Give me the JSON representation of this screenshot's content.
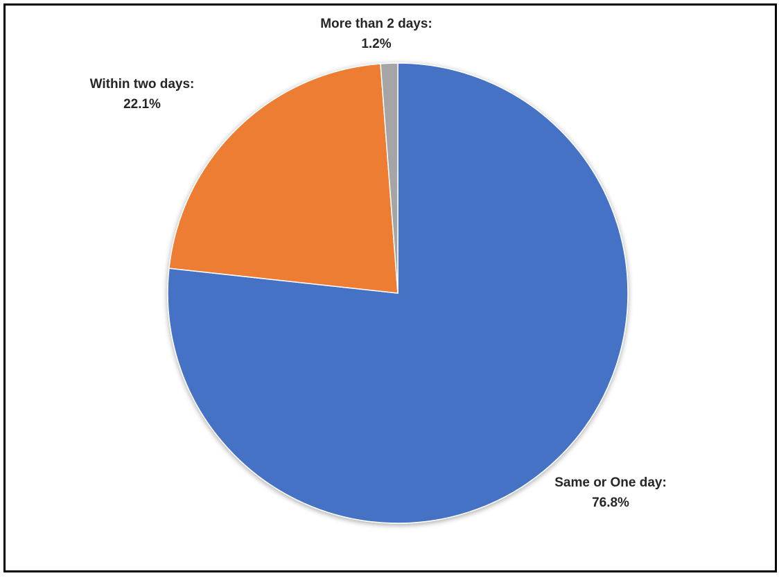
{
  "chart_data": {
    "type": "pie",
    "title": "",
    "start_angle_deg": 0,
    "direction": "clockwise",
    "slices": [
      {
        "label": "Same or One day",
        "value": 76.8,
        "value_label": "76.8%",
        "color": "#4472C4"
      },
      {
        "label": "Within two days",
        "value": 22.1,
        "value_label": "22.1%",
        "color": "#ED7D31"
      },
      {
        "label": "More than 2 days",
        "value": 1.2,
        "value_label": "1.2%",
        "color": "#A5A5A5"
      }
    ],
    "data_labels": [
      {
        "name": "Same or One day:",
        "value": "76.8%"
      },
      {
        "name": "Within two days:",
        "value": "22.1%"
      },
      {
        "name": "More than 2 days:",
        "value": "1.2%"
      }
    ],
    "legend": "none"
  }
}
